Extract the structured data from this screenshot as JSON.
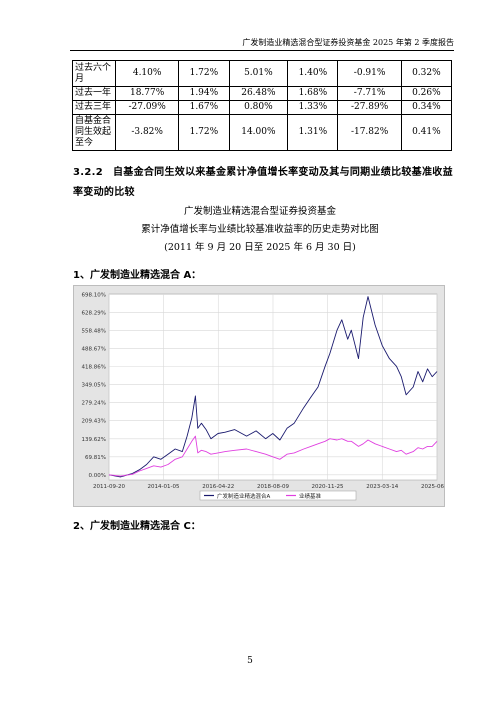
{
  "header": {
    "title": "广发制造业精选混合型证券投资基金 2025 年第 2 季度报告"
  },
  "table": {
    "rows": [
      {
        "label": "过去六个月",
        "cells": [
          "4.10%",
          "1.72%",
          "5.01%",
          "1.40%",
          "-0.91%",
          "0.32%"
        ]
      },
      {
        "label": "过去一年",
        "cells": [
          "18.77%",
          "1.94%",
          "26.48%",
          "1.68%",
          "-7.71%",
          "0.26%"
        ]
      },
      {
        "label": "过去三年",
        "cells": [
          "-27.09%",
          "1.67%",
          "0.80%",
          "1.33%",
          "-27.89%",
          "0.34%"
        ]
      },
      {
        "label": "自基金合同生效起至今",
        "cells": [
          "-3.82%",
          "1.72%",
          "14.00%",
          "1.31%",
          "-17.82%",
          "0.41%"
        ]
      }
    ]
  },
  "section": {
    "number": "3.2.2",
    "title": "自基金合同生效以来基金累计净值增长率变动及其与同期业绩比较基准收益率变动的比较"
  },
  "chart_titles": {
    "line1": "广发制造业精选混合型证券投资基金",
    "line2": "累计净值增长率与业绩比较基准收益率的历史走势对比图",
    "line3": "(2011 年 9 月 20 日至 2025 年 6 月 30 日)"
  },
  "subsections": {
    "a": "1、广发制造业精选混合 A：",
    "c": "2、广发制造业精选混合 C："
  },
  "page_number": "5",
  "chart_data": {
    "type": "line",
    "title": "",
    "xlabel": "",
    "ylabel": "",
    "ylim": [
      -20,
      700
    ],
    "y_ticks": [
      "698.10%",
      "628.29%",
      "558.48%",
      "488.67%",
      "418.86%",
      "349.05%",
      "279.24%",
      "209.43%",
      "139.62%",
      "69.81%",
      "0.00%"
    ],
    "y_tick_values": [
      698.1,
      628.29,
      558.48,
      488.67,
      418.86,
      349.05,
      279.24,
      209.43,
      139.62,
      69.81,
      0.0
    ],
    "x_ticks": [
      "2011-09-20",
      "2014-01-05",
      "2016-04-22",
      "2018-08-09",
      "2020-11-25",
      "2023-03-14",
      "2025-06-30"
    ],
    "x_tick_values": [
      2011.72,
      2014.01,
      2016.31,
      2018.61,
      2020.9,
      2023.2,
      2025.5
    ],
    "xlim": [
      2011.72,
      2025.5
    ],
    "legend_position": "bottom",
    "grid": true,
    "colors": {
      "fund": "#1a1a6e",
      "benchmark": "#e040e0"
    },
    "series": [
      {
        "name": "广发制造业精选混合A",
        "x": [
          2011.72,
          2012.2,
          2012.7,
          2013.0,
          2013.3,
          2013.6,
          2013.9,
          2014.2,
          2014.5,
          2014.8,
          2015.0,
          2015.2,
          2015.35,
          2015.45,
          2015.6,
          2015.8,
          2016.0,
          2016.3,
          2016.6,
          2017.0,
          2017.5,
          2017.9,
          2018.3,
          2018.6,
          2018.9,
          2019.2,
          2019.5,
          2019.9,
          2020.2,
          2020.5,
          2020.8,
          2021.0,
          2021.3,
          2021.5,
          2021.75,
          2021.9,
          2022.2,
          2022.4,
          2022.6,
          2022.9,
          2023.2,
          2023.5,
          2023.8,
          2024.0,
          2024.2,
          2024.5,
          2024.7,
          2024.9,
          2025.1,
          2025.3,
          2025.5
        ],
        "values": [
          0,
          -8,
          5,
          20,
          40,
          70,
          60,
          80,
          100,
          90,
          150,
          220,
          305,
          180,
          200,
          175,
          140,
          160,
          165,
          175,
          150,
          170,
          140,
          160,
          135,
          180,
          200,
          260,
          300,
          340,
          420,
          470,
          560,
          600,
          525,
          560,
          450,
          610,
          690,
          580,
          500,
          450,
          420,
          380,
          310,
          340,
          400,
          360,
          410,
          380,
          400
        ]
      },
      {
        "name": "业绩基准",
        "x": [
          2011.72,
          2012.2,
          2012.7,
          2013.0,
          2013.3,
          2013.6,
          2013.9,
          2014.2,
          2014.5,
          2014.8,
          2015.0,
          2015.2,
          2015.35,
          2015.45,
          2015.6,
          2015.8,
          2016.0,
          2016.3,
          2016.6,
          2017.0,
          2017.5,
          2017.9,
          2018.3,
          2018.6,
          2018.9,
          2019.2,
          2019.5,
          2019.9,
          2020.2,
          2020.5,
          2020.8,
          2021.0,
          2021.3,
          2021.5,
          2021.75,
          2021.9,
          2022.2,
          2022.4,
          2022.6,
          2022.9,
          2023.2,
          2023.5,
          2023.8,
          2024.0,
          2024.2,
          2024.5,
          2024.7,
          2024.9,
          2025.1,
          2025.3,
          2025.5
        ],
        "values": [
          0,
          -5,
          2,
          15,
          25,
          35,
          30,
          40,
          60,
          70,
          100,
          130,
          150,
          85,
          95,
          90,
          80,
          85,
          90,
          95,
          100,
          90,
          80,
          70,
          60,
          80,
          85,
          100,
          110,
          120,
          130,
          140,
          135,
          140,
          130,
          130,
          110,
          120,
          135,
          120,
          110,
          100,
          90,
          95,
          80,
          90,
          105,
          100,
          110,
          110,
          130
        ]
      }
    ]
  }
}
